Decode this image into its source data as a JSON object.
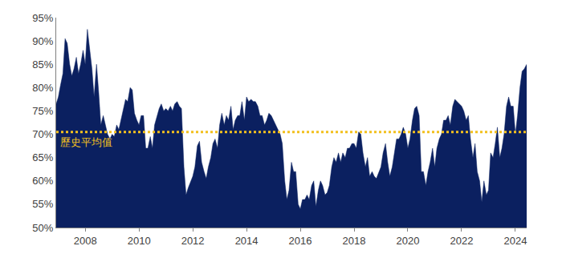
{
  "chart_data": {
    "type": "area",
    "color": "#0b2060",
    "grid": false,
    "xlim": [
      2006.92,
      2024.42
    ],
    "xticks": [
      2008,
      2010,
      2012,
      2014,
      2016,
      2018,
      2020,
      2022,
      2024
    ],
    "ylim": [
      50,
      95
    ],
    "yticks": [
      {
        "value": 50,
        "label": "50%"
      },
      {
        "value": 55,
        "label": "55%"
      },
      {
        "value": 60,
        "label": "60%"
      },
      {
        "value": 65,
        "label": "65%"
      },
      {
        "value": 70,
        "label": "70%"
      },
      {
        "value": 75,
        "label": "75%"
      },
      {
        "value": 80,
        "label": "80%"
      },
      {
        "value": 85,
        "label": "85%"
      },
      {
        "value": 90,
        "label": "90%"
      },
      {
        "value": 95,
        "label": "95%"
      }
    ],
    "reference_line": {
      "label": "歷史平均值",
      "value": 70.5,
      "color": "#f2c01e",
      "line_style": "dotted"
    },
    "x": [
      2006.92,
      2007.0,
      2007.08,
      2007.17,
      2007.25,
      2007.33,
      2007.42,
      2007.5,
      2007.58,
      2007.67,
      2007.75,
      2007.83,
      2007.92,
      2008.0,
      2008.08,
      2008.17,
      2008.25,
      2008.33,
      2008.42,
      2008.5,
      2008.58,
      2008.67,
      2008.75,
      2008.83,
      2008.92,
      2009.0,
      2009.08,
      2009.17,
      2009.25,
      2009.33,
      2009.42,
      2009.5,
      2009.58,
      2009.67,
      2009.75,
      2009.83,
      2009.92,
      2010.0,
      2010.08,
      2010.17,
      2010.25,
      2010.33,
      2010.42,
      2010.5,
      2010.58,
      2010.67,
      2010.75,
      2010.83,
      2010.92,
      2011.0,
      2011.08,
      2011.17,
      2011.25,
      2011.33,
      2011.42,
      2011.5,
      2011.58,
      2011.67,
      2011.75,
      2011.83,
      2011.92,
      2012.0,
      2012.08,
      2012.17,
      2012.25,
      2012.33,
      2012.42,
      2012.5,
      2012.58,
      2012.67,
      2012.75,
      2012.83,
      2012.92,
      2013.0,
      2013.08,
      2013.17,
      2013.25,
      2013.33,
      2013.42,
      2013.5,
      2013.58,
      2013.67,
      2013.75,
      2013.83,
      2013.92,
      2014.0,
      2014.08,
      2014.17,
      2014.25,
      2014.33,
      2014.42,
      2014.5,
      2014.58,
      2014.67,
      2014.75,
      2014.83,
      2014.92,
      2015.0,
      2015.08,
      2015.17,
      2015.25,
      2015.33,
      2015.42,
      2015.5,
      2015.58,
      2015.67,
      2015.75,
      2015.83,
      2015.92,
      2016.0,
      2016.08,
      2016.17,
      2016.25,
      2016.33,
      2016.42,
      2016.5,
      2016.58,
      2016.67,
      2016.75,
      2016.83,
      2016.92,
      2017.0,
      2017.08,
      2017.17,
      2017.25,
      2017.33,
      2017.42,
      2017.5,
      2017.58,
      2017.67,
      2017.75,
      2017.83,
      2017.92,
      2018.0,
      2018.08,
      2018.17,
      2018.25,
      2018.33,
      2018.42,
      2018.5,
      2018.58,
      2018.67,
      2018.75,
      2018.83,
      2018.92,
      2019.0,
      2019.08,
      2019.17,
      2019.25,
      2019.33,
      2019.42,
      2019.5,
      2019.58,
      2019.67,
      2019.75,
      2019.83,
      2019.92,
      2020.0,
      2020.08,
      2020.17,
      2020.25,
      2020.33,
      2020.42,
      2020.5,
      2020.58,
      2020.67,
      2020.75,
      2020.83,
      2020.92,
      2021.0,
      2021.08,
      2021.17,
      2021.25,
      2021.33,
      2021.42,
      2021.5,
      2021.58,
      2021.67,
      2021.75,
      2021.83,
      2021.92,
      2022.0,
      2022.08,
      2022.17,
      2022.25,
      2022.33,
      2022.42,
      2022.5,
      2022.58,
      2022.67,
      2022.75,
      2022.83,
      2022.92,
      2023.0,
      2023.08,
      2023.17,
      2023.25,
      2023.33,
      2023.42,
      2023.5,
      2023.58,
      2023.67,
      2023.75,
      2023.83,
      2023.92,
      2024.0,
      2024.08,
      2024.17,
      2024.25,
      2024.33,
      2024.42
    ],
    "values": [
      76.5,
      78,
      80.5,
      83,
      90.5,
      89.5,
      85,
      82.5,
      84,
      86.5,
      83,
      85,
      88,
      85,
      92.5,
      88,
      84,
      78,
      85,
      79,
      72,
      74,
      72,
      70,
      69,
      70,
      69.5,
      72,
      71,
      73,
      75,
      77.5,
      77,
      80,
      79.5,
      74.5,
      73,
      72,
      74,
      74,
      67,
      67,
      69.5,
      67,
      72,
      74,
      75.5,
      76.5,
      75,
      75.5,
      75,
      76,
      75,
      76.5,
      77,
      76,
      75.5,
      63,
      57,
      58.5,
      60,
      61,
      63,
      67.5,
      68.5,
      64,
      62,
      60.5,
      63,
      65,
      68,
      69,
      67,
      72,
      74.5,
      72,
      74,
      73,
      76,
      71,
      73,
      74,
      74,
      77,
      73,
      78,
      77,
      77.5,
      77,
      77,
      76,
      74,
      74,
      72,
      73,
      74.5,
      74,
      73,
      72,
      71,
      70,
      68,
      60,
      56,
      58,
      64,
      62,
      62,
      55,
      54,
      56,
      56,
      57,
      56,
      59,
      60,
      54.5,
      58,
      60,
      59,
      57,
      57.5,
      59,
      63,
      65,
      64,
      66,
      64,
      66,
      65,
      67,
      67,
      68,
      68,
      67,
      70.5,
      70,
      66,
      63,
      65,
      61,
      62,
      61,
      60.5,
      62,
      63,
      66,
      68,
      64,
      61,
      63,
      66,
      69,
      69,
      70,
      71.5,
      70,
      67,
      69,
      73,
      75.5,
      76,
      74,
      62,
      62,
      59,
      62,
      64,
      67,
      63,
      67,
      69,
      70,
      73,
      73,
      74,
      72,
      76,
      77.5,
      77,
      76.5,
      76,
      75,
      73,
      74,
      69,
      65,
      68,
      62,
      60,
      55.5,
      60,
      57,
      58,
      66,
      65,
      68,
      71.5,
      65,
      67,
      70,
      76,
      78,
      76,
      76,
      70,
      74,
      80,
      83.5,
      84,
      85
    ]
  }
}
